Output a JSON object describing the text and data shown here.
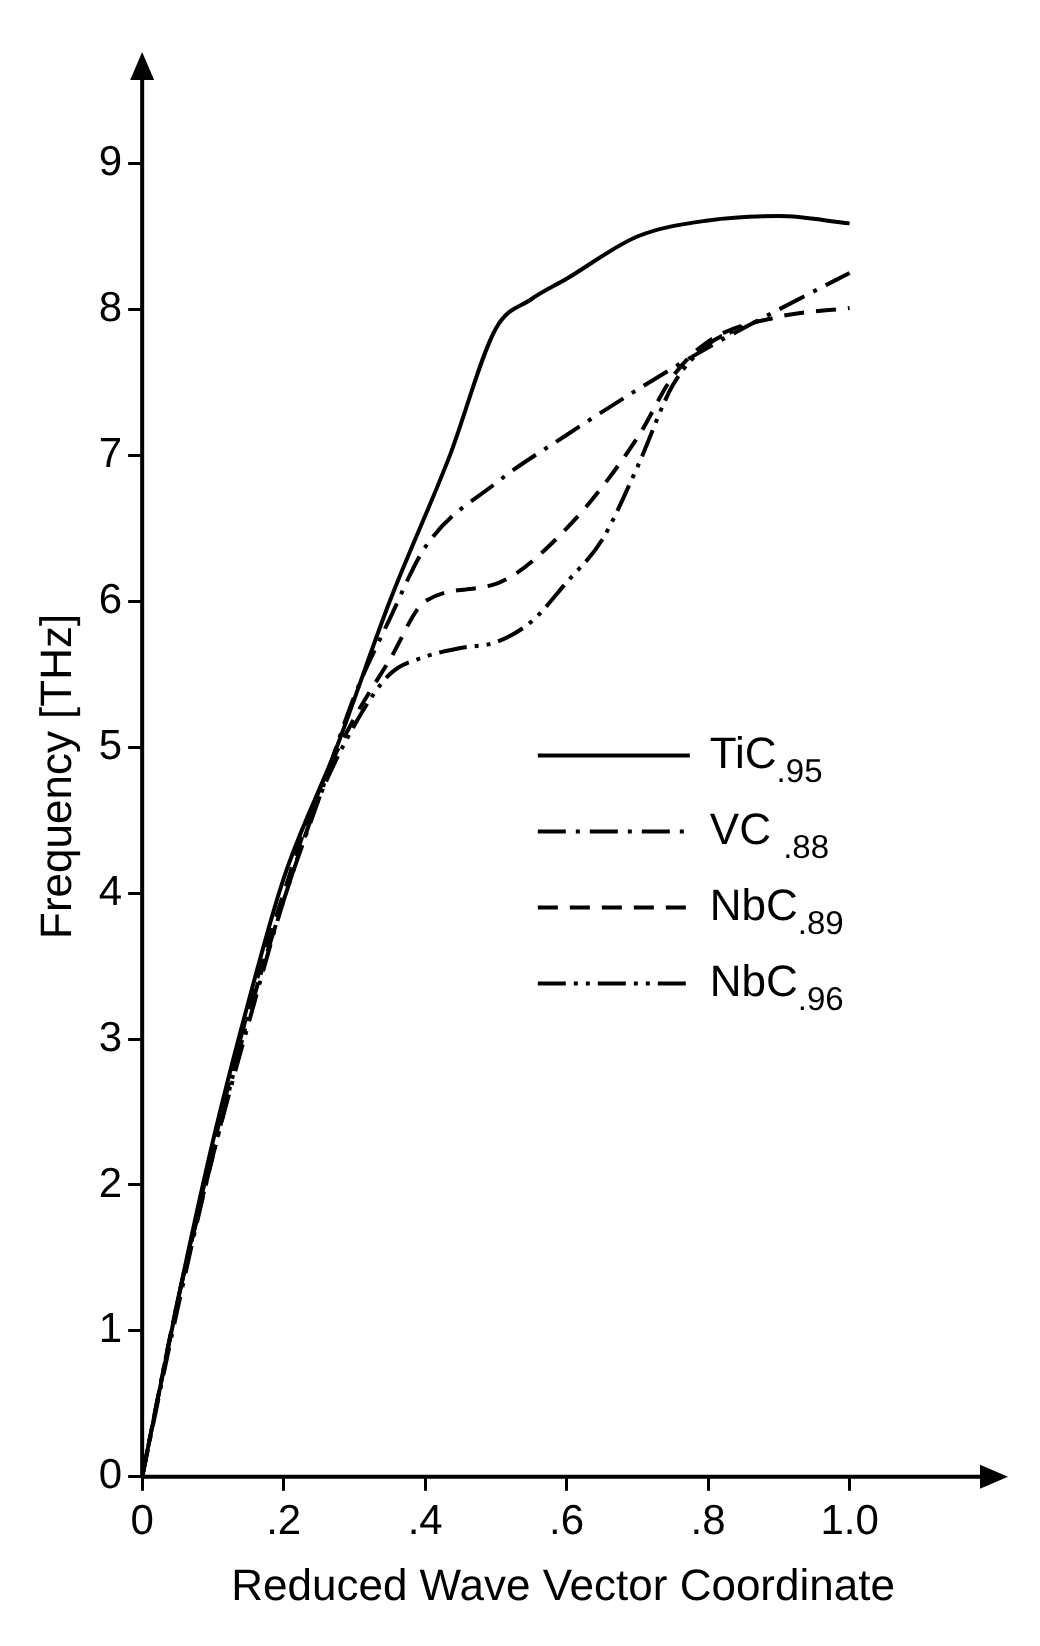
{
  "chart_data": {
    "type": "line",
    "xlabel": "Reduced Wave Vector Coordinate",
    "ylabel": "Frequency [THz]",
    "xlim": [
      0,
      1.19
    ],
    "ylim": [
      0,
      9.6
    ],
    "xticks": [
      0,
      {
        "value": 0.2,
        "label": ".2"
      },
      {
        "value": 0.4,
        "label": ".4"
      },
      {
        "value": 0.6,
        "label": ".6"
      },
      {
        "value": 0.8,
        "label": ".8"
      },
      {
        "value": 1.0,
        "label": "1.0"
      }
    ],
    "yticks": [
      0,
      1,
      2,
      3,
      4,
      5,
      6,
      7,
      8,
      9
    ],
    "grid": false,
    "legend": "right",
    "marker": "none",
    "series": [
      {
        "name": "TiC$_{.95}$",
        "color": "#000000",
        "line_style": "solid",
        "x": [
          0,
          0.05,
          0.1,
          0.15,
          0.2,
          0.275,
          0.35,
          0.435,
          0.5,
          0.55,
          0.6,
          0.7,
          0.8,
          0.9,
          1.0
        ],
        "values": [
          0,
          1.2,
          2.3,
          3.25,
          4.1,
          5,
          6,
          7,
          7.87,
          8.07,
          8.21,
          8.5,
          8.61,
          8.64,
          8.59
        ]
      },
      {
        "name": "VC $_{.88}$",
        "color": "#000000",
        "line_style": "dashdot",
        "x": [
          0,
          0.05,
          0.1,
          0.15,
          0.2,
          0.25,
          0.3,
          0.35,
          0.4,
          0.5,
          0.6,
          0.7,
          0.8,
          0.9,
          1.0
        ],
        "values": [
          0,
          1.15,
          2.2,
          3.1,
          3.95,
          4.65,
          5.35,
          5.88,
          6.37,
          6.81,
          7.14,
          7.45,
          7.74,
          8.0,
          8.25
        ]
      },
      {
        "name": "NbC$_{.89}$",
        "color": "#000000",
        "line_style": "dashed",
        "x": [
          0,
          0.05,
          0.1,
          0.15,
          0.2,
          0.25,
          0.3,
          0.35,
          0.4,
          0.5,
          0.6,
          0.7,
          0.75,
          0.8,
          0.9,
          1.0
        ],
        "values": [
          0,
          1.2,
          2.25,
          3.2,
          4.0,
          4.7,
          5.2,
          5.6,
          6.0,
          6.12,
          6.5,
          7.12,
          7.54,
          7.78,
          7.95,
          8.01
        ]
      },
      {
        "name": "NbC$_{.96}$",
        "color": "#000000",
        "line_style": "dashdotdot",
        "x": [
          0,
          0.05,
          0.1,
          0.15,
          0.2,
          0.25,
          0.3,
          0.35,
          0.4,
          0.45,
          0.5,
          0.55,
          0.6,
          0.65,
          0.7,
          0.75,
          0.8,
          0.85
        ],
        "values": [
          0,
          1.2,
          2.2,
          3.15,
          3.95,
          4.65,
          5.15,
          5.5,
          5.62,
          5.68,
          5.72,
          5.86,
          6.13,
          6.42,
          6.92,
          7.48,
          7.76,
          7.88
        ]
      }
    ]
  }
}
